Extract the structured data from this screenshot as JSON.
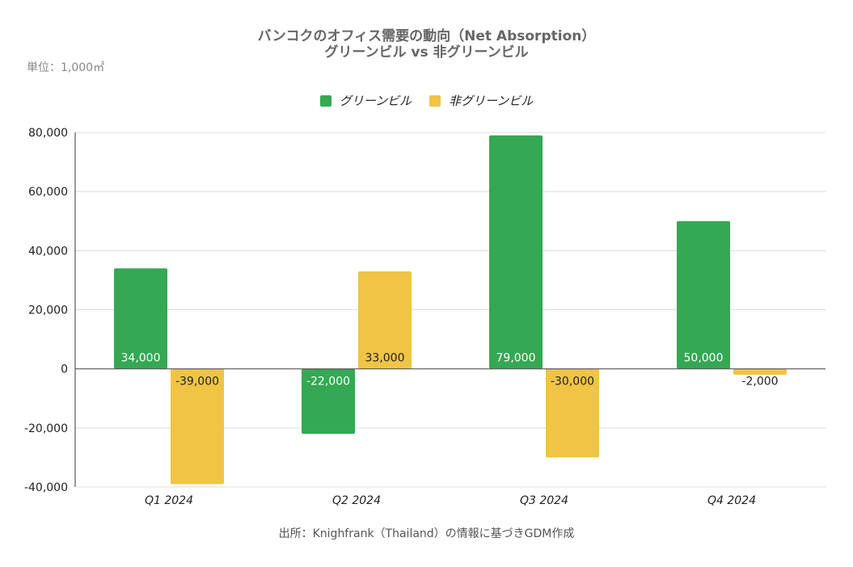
{
  "chart_data": {
    "type": "bar",
    "title": "バンコクのオフィス需要の動向（Net Absorption）",
    "subtitle": "グリーンビル vs 非グリーンビル",
    "unit_label": "単位：1,000㎡",
    "source": "出所：Knighfrank（Thailand）の情報に基づきGDM作成",
    "categories": [
      "Q1 2024",
      "Q2 2024",
      "Q3 2024",
      "Q4 2024"
    ],
    "series": [
      {
        "name": "グリーンビル",
        "color": "#34a853",
        "values": [
          34000,
          -22000,
          79000,
          50000
        ],
        "labels": [
          "34,000",
          "-22,000",
          "79,000",
          "50,000"
        ]
      },
      {
        "name": "非グリーンビル",
        "color": "#f0c445",
        "values": [
          -39000,
          33000,
          -30000,
          -2000
        ],
        "labels": [
          "-39,000",
          "33,000",
          "-30,000",
          "-2,000"
        ]
      }
    ],
    "ylim": [
      -40000,
      80000
    ],
    "yticks": [
      80000,
      60000,
      40000,
      20000,
      0,
      -20000,
      -40000
    ],
    "ytick_labels": [
      "80,000",
      "60,000",
      "40,000",
      "20,000",
      "0",
      "-20,000",
      "-40,000"
    ],
    "grid": true,
    "legend_position": "top-center"
  }
}
